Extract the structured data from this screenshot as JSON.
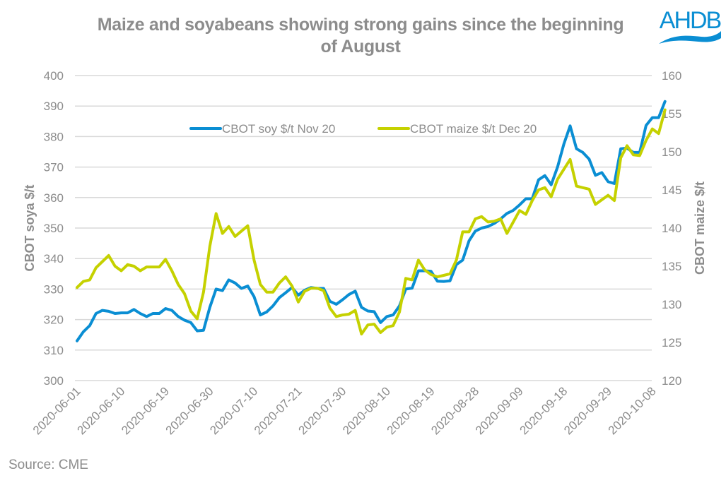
{
  "header": {
    "title": "Maize and soyabeans showing strong gains since the beginning of August",
    "logo_text": "AHDB",
    "logo_color": "#0a8ed3"
  },
  "footer": {
    "source": "Source: CME"
  },
  "chart_data": {
    "type": "line",
    "title": "Maize and soyabeans showing strong gains since the beginning of August",
    "xlabel": "",
    "ylabel": "CBOT soya $/t",
    "y2label": "CBOT maize $/t",
    "ylim": [
      300,
      400
    ],
    "y2lim": [
      120,
      160
    ],
    "yticks": [
      300,
      310,
      320,
      330,
      340,
      350,
      360,
      370,
      380,
      390,
      400
    ],
    "y2ticks": [
      120,
      125,
      130,
      135,
      140,
      145,
      150,
      155,
      160
    ],
    "xtick_labels": [
      "2020-06-01",
      "2020-06-10",
      "2020-06-19",
      "2020-06-30",
      "2020-07-10",
      "2020-07-21",
      "2020-07-30",
      "2020-08-10",
      "2020-08-19",
      "2020-08-28",
      "2020-09-09",
      "2020-09-18",
      "2020-09-29",
      "2020-10-08"
    ],
    "xtick_every": 7,
    "grid": true,
    "legend_position": "top-center",
    "series": [
      {
        "name": "CBOT soy $/t Nov 20",
        "axis": "left",
        "color": "#0a8ed3",
        "values": [
          313,
          316,
          318,
          322,
          323,
          322.7,
          322,
          322.2,
          322.2,
          323.3,
          322,
          321,
          322,
          322,
          323.6,
          323,
          321,
          319.8,
          319,
          316.3,
          316.5,
          324,
          330,
          329.5,
          333,
          332,
          330.2,
          331,
          327.5,
          321.5,
          322.5,
          324.5,
          327.2,
          328.8,
          330.5,
          328,
          329.6,
          330.5,
          330.2,
          330.2,
          326,
          325,
          326.5,
          328.2,
          329.3,
          324,
          322.8,
          322.6,
          319,
          321,
          321.5,
          324.5,
          330,
          330.3,
          336,
          336,
          335.8,
          332.6,
          332.5,
          332.7,
          338,
          339.5,
          345.8,
          349,
          350,
          350.5,
          351.5,
          353,
          354.8,
          355.8,
          357.6,
          359.6,
          359.6,
          365.8,
          367.2,
          364.2,
          370,
          377.5,
          383.5,
          376,
          374.8,
          372.6,
          367.3,
          368.2,
          365.2,
          364.6,
          376,
          376.2,
          374.8,
          374.8,
          383.6,
          386.2,
          386.2,
          391.5
        ]
      },
      {
        "name": "CBOT maize $/t Dec 20",
        "axis": "right",
        "color": "#c5d100",
        "values": [
          132.2,
          133,
          133.2,
          134.8,
          135.6,
          136.4,
          135,
          134.4,
          135.2,
          135,
          134.4,
          134.9,
          134.9,
          134.9,
          135.9,
          134.4,
          132.6,
          131.4,
          129.1,
          128.1,
          131.6,
          137.6,
          141.9,
          139.3,
          140.2,
          138.9,
          139.6,
          140.3,
          135.8,
          132.6,
          131.6,
          131.6,
          132.8,
          133.6,
          132.4,
          130.3,
          131.7,
          132.1,
          132.1,
          131.8,
          129.5,
          128.4,
          128.6,
          128.7,
          129.2,
          126.1,
          127.3,
          127.4,
          126.3,
          127,
          127.2,
          129,
          133.4,
          133.2,
          135.8,
          134.5,
          133.9,
          133.6,
          133.8,
          134,
          135.8,
          139.5,
          139.5,
          141.2,
          141.5,
          140.8,
          140.9,
          141.2,
          139.3,
          140.8,
          142.3,
          141.8,
          143.6,
          145,
          145.3,
          144.1,
          146.4,
          147.7,
          149,
          145.5,
          145.3,
          145.1,
          143.1,
          143.7,
          144.3,
          143.6,
          149.2,
          150.8,
          149.6,
          149.5,
          151.5,
          153,
          152.4,
          155.5
        ]
      }
    ]
  }
}
